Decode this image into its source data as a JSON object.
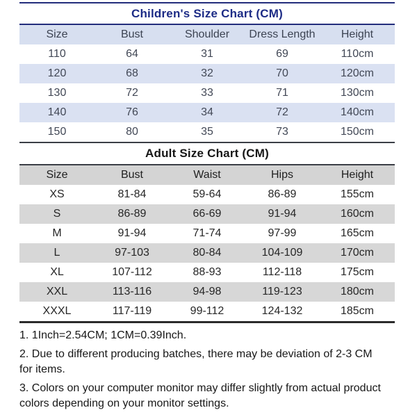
{
  "children_chart": {
    "title": "Children's Size Chart (CM)",
    "columns": [
      "Size",
      "Bust",
      "Shoulder",
      "Dress Length",
      "Height"
    ],
    "rows": [
      [
        "110",
        "64",
        "31",
        "69",
        "110cm"
      ],
      [
        "120",
        "68",
        "32",
        "70",
        "120cm"
      ],
      [
        "130",
        "72",
        "33",
        "71",
        "130cm"
      ],
      [
        "140",
        "76",
        "34",
        "72",
        "140cm"
      ],
      [
        "150",
        "80",
        "35",
        "73",
        "150cm"
      ]
    ]
  },
  "adult_chart": {
    "title": "Adult Size Chart (CM)",
    "columns": [
      "Size",
      "Bust",
      "Waist",
      "Hips",
      "Height"
    ],
    "rows": [
      [
        "XS",
        "81-84",
        "59-64",
        "86-89",
        "155cm"
      ],
      [
        "S",
        "86-89",
        "66-69",
        "91-94",
        "160cm"
      ],
      [
        "M",
        "91-94",
        "71-74",
        "97-99",
        "165cm"
      ],
      [
        "L",
        "97-103",
        "80-84",
        "104-109",
        "170cm"
      ],
      [
        "XL",
        "107-112",
        "88-93",
        "112-118",
        "175cm"
      ],
      [
        "XXL",
        "113-116",
        "94-98",
        "119-123",
        "180cm"
      ],
      [
        "XXXL",
        "117-119",
        "99-112",
        "124-132",
        "185cm"
      ]
    ]
  },
  "notes": [
    "1. 1Inch=2.54CM; 1CM=0.39Inch.",
    "2. Due to different producing batches, there may be deviation of 2-3 CM for items.",
    "3. Colors on your computer monitor may differ slightly from actual product colors depending on your monitor settings."
  ],
  "colors": {
    "title_navy": "#1d2c86",
    "rule_navy": "#232d7c",
    "children_row_tint": "#dae1f2",
    "adult_row_tint": "#d6d6d6",
    "text_dark": "#272727"
  },
  "chart_data": [
    {
      "type": "table",
      "title": "Children's Size Chart (CM)",
      "columns": [
        "Size",
        "Bust",
        "Shoulder",
        "Dress Length",
        "Height"
      ],
      "rows": [
        [
          "110",
          "64",
          "31",
          "69",
          "110cm"
        ],
        [
          "120",
          "68",
          "32",
          "70",
          "120cm"
        ],
        [
          "130",
          "72",
          "33",
          "71",
          "130cm"
        ],
        [
          "140",
          "76",
          "34",
          "72",
          "140cm"
        ],
        [
          "150",
          "80",
          "35",
          "73",
          "150cm"
        ]
      ]
    },
    {
      "type": "table",
      "title": "Adult Size Chart (CM)",
      "columns": [
        "Size",
        "Bust",
        "Waist",
        "Hips",
        "Height"
      ],
      "rows": [
        [
          "XS",
          "81-84",
          "59-64",
          "86-89",
          "155cm"
        ],
        [
          "S",
          "86-89",
          "66-69",
          "91-94",
          "160cm"
        ],
        [
          "M",
          "91-94",
          "71-74",
          "97-99",
          "165cm"
        ],
        [
          "L",
          "97-103",
          "80-84",
          "104-109",
          "170cm"
        ],
        [
          "XL",
          "107-112",
          "88-93",
          "112-118",
          "175cm"
        ],
        [
          "XXL",
          "113-116",
          "94-98",
          "119-123",
          "180cm"
        ],
        [
          "XXXL",
          "117-119",
          "99-112",
          "124-132",
          "185cm"
        ]
      ]
    }
  ]
}
